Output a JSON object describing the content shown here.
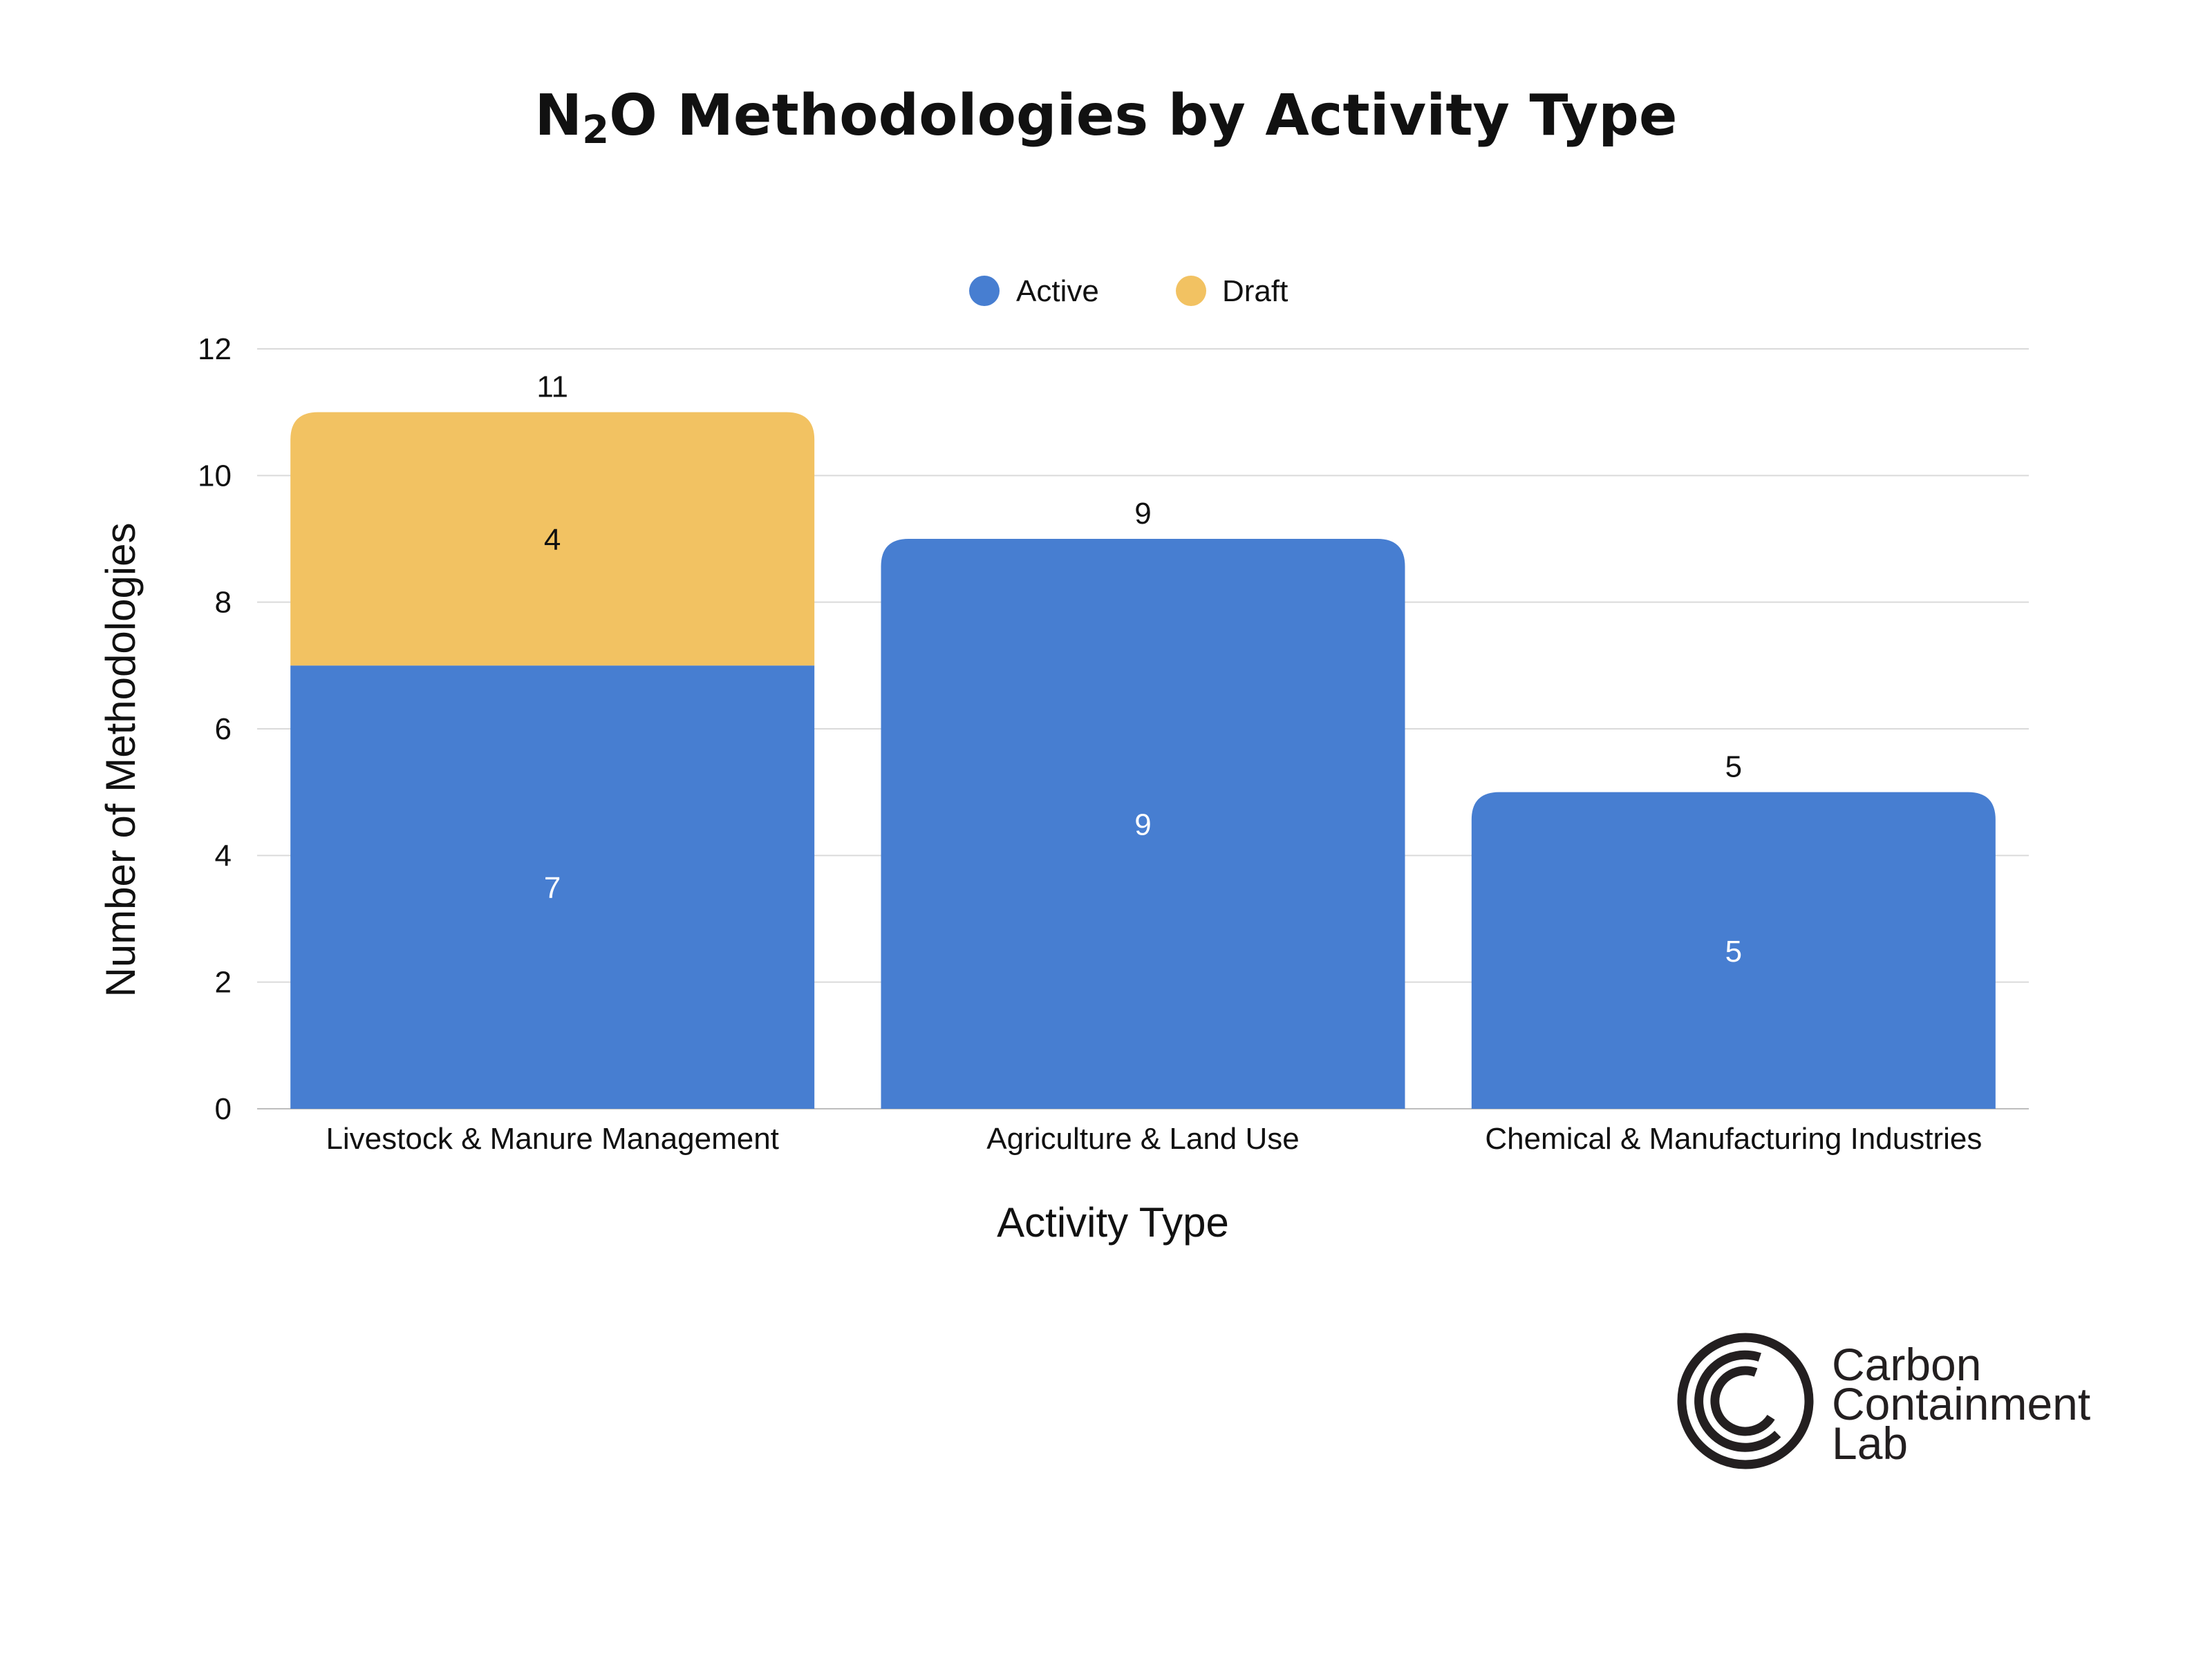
{
  "chart_data": {
    "type": "bar",
    "stacked": true,
    "title": "N₂O Methodologies by Activity Type",
    "title_parts": {
      "pre": "N",
      "sub": "2",
      "post": "O Methodologies by Activity Type"
    },
    "xlabel": "Activity Type",
    "ylabel": "Number of Methodologies",
    "ylim": [
      0,
      12
    ],
    "yticks": [
      0,
      2,
      4,
      6,
      8,
      10,
      12
    ],
    "grid": true,
    "legend_position": "top-center",
    "categories": [
      "Livestock & Manure Management",
      "Agriculture & Land Use",
      "Chemical & Manufacturing Industries"
    ],
    "series": [
      {
        "name": "Active",
        "color": "#477ed1",
        "label_color": "#ffffff",
        "values": [
          7,
          9,
          5
        ]
      },
      {
        "name": "Draft",
        "color": "#f2c262",
        "label_color": "#111111",
        "values": [
          4,
          0,
          0
        ]
      }
    ],
    "totals": [
      11,
      9,
      5
    ]
  },
  "logo": {
    "lines": [
      "Carbon",
      "Containment",
      "Lab"
    ],
    "icon": "concentric-c-logo-icon"
  }
}
